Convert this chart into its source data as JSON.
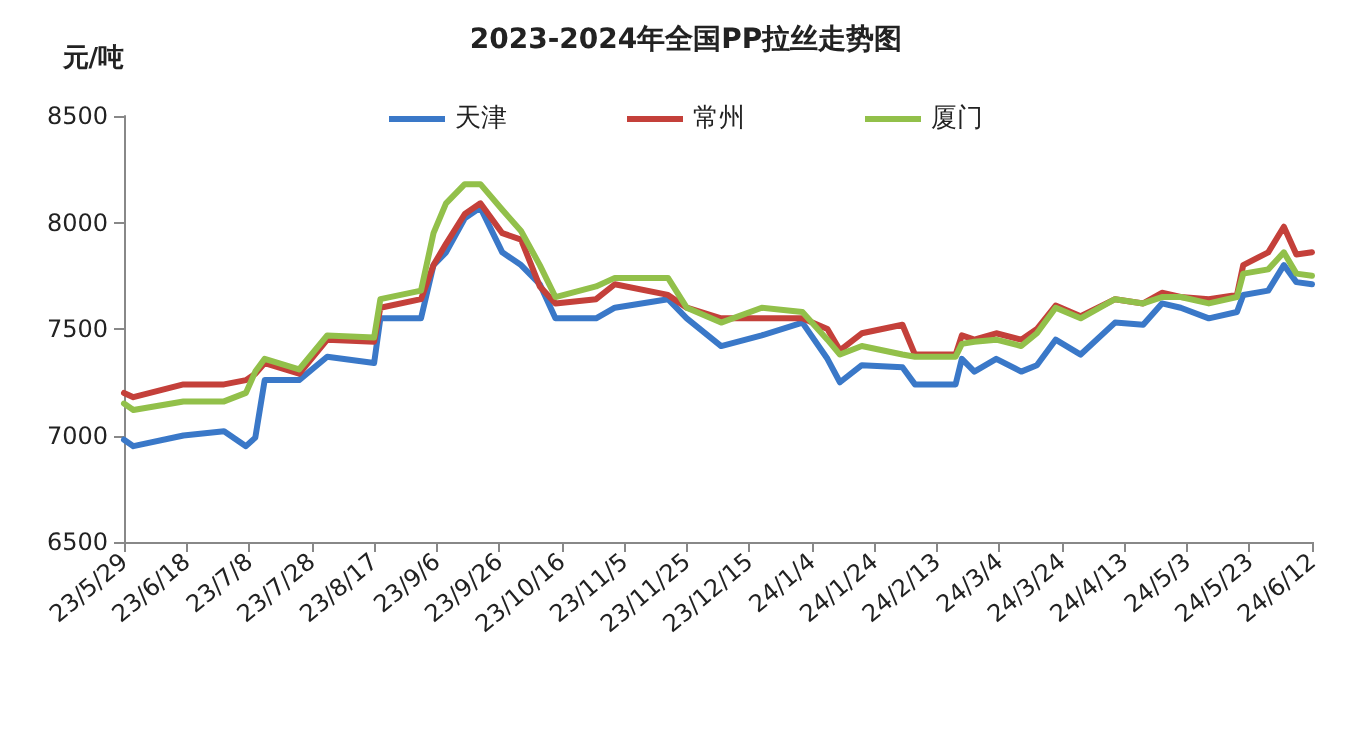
{
  "chart_data": {
    "type": "line",
    "title": "2023-2024年全国PP拉丝走势图",
    "ylabel": "元/吨",
    "x": [
      "2023-05-29",
      "2023-06-01",
      "2023-06-17",
      "2023-06-30",
      "2023-07-07",
      "2023-07-10",
      "2023-07-13",
      "2023-07-24",
      "2023-08-02",
      "2023-08-17",
      "2023-08-19",
      "2023-09-01",
      "2023-09-05",
      "2023-09-09",
      "2023-09-15",
      "2023-09-20",
      "2023-09-27",
      "2023-10-03",
      "2023-10-09",
      "2023-10-14",
      "2023-10-27",
      "2023-11-02",
      "2023-11-19",
      "2023-11-25",
      "2023-12-06",
      "2023-12-19",
      "2024-01-01",
      "2024-01-09",
      "2024-01-13",
      "2024-01-20",
      "2024-02-02",
      "2024-02-06",
      "2024-02-19",
      "2024-02-21",
      "2024-02-25",
      "2024-03-03",
      "2024-03-11",
      "2024-03-16",
      "2024-03-22",
      "2024-03-30",
      "2024-04-10",
      "2024-04-19",
      "2024-04-25",
      "2024-05-01",
      "2024-05-10",
      "2024-05-19",
      "2024-05-21",
      "2024-05-29",
      "2024-06-03",
      "2024-06-07",
      "2024-06-12"
    ],
    "series": [
      {
        "name": "天津",
        "color": "#3a78c8",
        "values": [
          6980,
          6950,
          7000,
          7020,
          6950,
          6990,
          7260,
          7260,
          7370,
          7340,
          7550,
          7550,
          7800,
          7860,
          8020,
          8070,
          7860,
          7800,
          7710,
          7550,
          7550,
          7600,
          7640,
          7550,
          7420,
          7470,
          7530,
          7360,
          7250,
          7330,
          7320,
          7240,
          7240,
          7360,
          7300,
          7360,
          7300,
          7330,
          7450,
          7380,
          7530,
          7520,
          7620,
          7600,
          7550,
          7580,
          7660,
          7680,
          7800,
          7720,
          7710
        ]
      },
      {
        "name": "常州",
        "color": "#c4403a",
        "values": [
          7200,
          7180,
          7240,
          7240,
          7260,
          7290,
          7340,
          7290,
          7450,
          7440,
          7600,
          7640,
          7800,
          7900,
          8040,
          8090,
          7950,
          7920,
          7700,
          7620,
          7640,
          7710,
          7660,
          7600,
          7550,
          7550,
          7550,
          7500,
          7400,
          7480,
          7520,
          7380,
          7380,
          7470,
          7450,
          7480,
          7450,
          7500,
          7610,
          7560,
          7640,
          7620,
          7670,
          7650,
          7640,
          7660,
          7800,
          7860,
          7980,
          7850,
          7860
        ]
      },
      {
        "name": "厦门",
        "color": "#92c04a",
        "values": [
          7150,
          7120,
          7160,
          7160,
          7200,
          7300,
          7360,
          7310,
          7470,
          7460,
          7640,
          7680,
          7950,
          8090,
          8180,
          8180,
          8060,
          7960,
          7800,
          7650,
          7700,
          7740,
          7740,
          7600,
          7530,
          7600,
          7580,
          7450,
          7380,
          7420,
          7380,
          7370,
          7370,
          7430,
          7440,
          7450,
          7420,
          7480,
          7600,
          7550,
          7640,
          7620,
          7650,
          7650,
          7620,
          7650,
          7760,
          7780,
          7860,
          7760,
          7750
        ]
      }
    ],
    "xlim": [
      "2023-05-29",
      "2024-06-12"
    ],
    "xticks": [
      {
        "value": "2023-05-29",
        "label": "23/5/29"
      },
      {
        "value": "2023-06-18",
        "label": "23/6/18"
      },
      {
        "value": "2023-07-08",
        "label": "23/7/8"
      },
      {
        "value": "2023-07-28",
        "label": "23/7/28"
      },
      {
        "value": "2023-08-17",
        "label": "23/8/17"
      },
      {
        "value": "2023-09-06",
        "label": "23/9/6"
      },
      {
        "value": "2023-09-26",
        "label": "23/9/26"
      },
      {
        "value": "2023-10-16",
        "label": "23/10/16"
      },
      {
        "value": "2023-11-05",
        "label": "23/11/5"
      },
      {
        "value": "2023-11-25",
        "label": "23/11/25"
      },
      {
        "value": "2023-12-15",
        "label": "23/12/15"
      },
      {
        "value": "2024-01-04",
        "label": "24/1/4"
      },
      {
        "value": "2024-01-24",
        "label": "24/1/24"
      },
      {
        "value": "2024-02-13",
        "label": "24/2/13"
      },
      {
        "value": "2024-03-04",
        "label": "24/3/4"
      },
      {
        "value": "2024-03-24",
        "label": "24/3/24"
      },
      {
        "value": "2024-04-13",
        "label": "24/4/13"
      },
      {
        "value": "2024-05-03",
        "label": "24/5/3"
      },
      {
        "value": "2024-05-23",
        "label": "24/5/23"
      },
      {
        "value": "2024-06-12",
        "label": "24/6/12"
      }
    ],
    "ylim": [
      6500,
      8500
    ],
    "yticks": [
      6500,
      7000,
      7500,
      8000,
      8500
    ],
    "grid": false,
    "legend": "top",
    "marker": "none",
    "line_style": "solid"
  }
}
